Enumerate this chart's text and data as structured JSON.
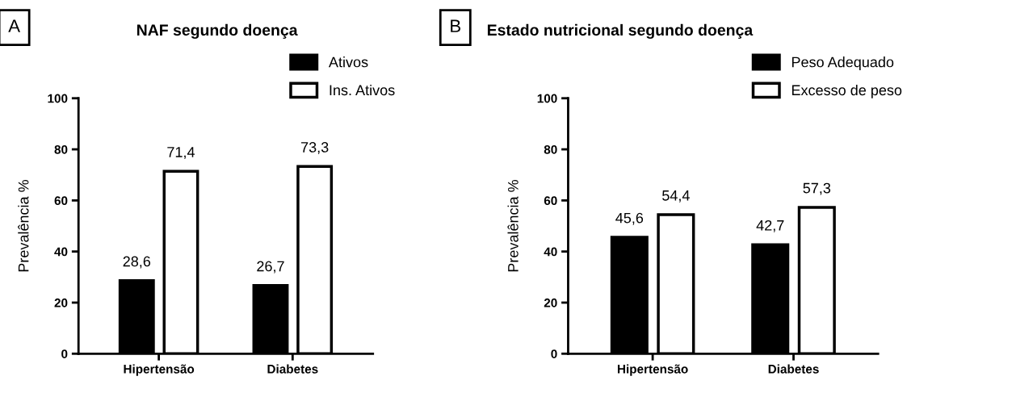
{
  "chart_data": [
    {
      "type": "bar",
      "title": "NAF segundo doença",
      "ylabel": "Prevalência %",
      "annotations": [
        "A"
      ],
      "categories": [
        "Hipertensão",
        "Diabetes"
      ],
      "series": [
        {
          "name": "Ativos",
          "color": "#000000",
          "values": [
            28.6,
            26.7
          ],
          "value_labels": [
            "28,6",
            "26,7"
          ]
        },
        {
          "name": "Ins. Ativos",
          "color": "#ffffff",
          "values": [
            71.4,
            73.3
          ],
          "value_labels": [
            "71,4",
            "73,3"
          ]
        }
      ],
      "ylim": [
        0,
        100
      ],
      "yticks": [
        0,
        20,
        40,
        60,
        80,
        100
      ],
      "grid": false,
      "legend": "top right"
    },
    {
      "type": "bar",
      "title": "Estado nutricional segundo doença",
      "ylabel": "Prevalência %",
      "annotations": [
        "B"
      ],
      "categories": [
        "Hipertensão",
        "Diabetes"
      ],
      "series": [
        {
          "name": "Peso Adequado",
          "color": "#000000",
          "values": [
            45.6,
            42.7
          ],
          "value_labels": [
            "45,6",
            "42,7"
          ]
        },
        {
          "name": "Excesso de peso",
          "color": "#ffffff",
          "values": [
            54.4,
            57.3
          ],
          "value_labels": [
            "54,4",
            "57,3"
          ]
        }
      ],
      "ylim": [
        0,
        100
      ],
      "yticks": [
        0,
        20,
        40,
        60,
        80,
        100
      ],
      "grid": false,
      "legend": "top right"
    }
  ]
}
